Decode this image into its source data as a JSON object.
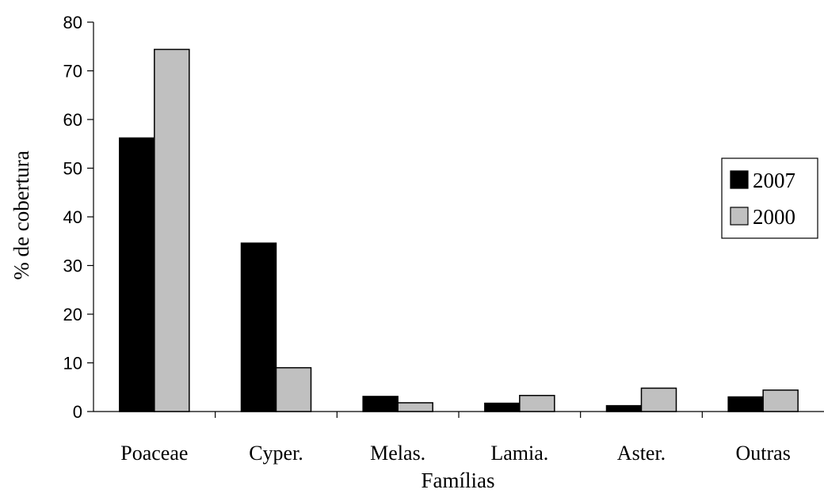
{
  "chart_data": {
    "type": "bar",
    "categories": [
      "Poaceae",
      "Cyper.",
      "Melas.",
      "Lamia.",
      "Aster.",
      "Outras"
    ],
    "series": [
      {
        "name": "2007",
        "values": [
          56.2,
          34.6,
          3.1,
          1.7,
          1.2,
          3.0
        ],
        "color": "#000000"
      },
      {
        "name": "2000",
        "values": [
          74.4,
          9.0,
          1.8,
          3.3,
          4.8,
          4.4
        ],
        "color": "#c0c0c0"
      }
    ],
    "title": "",
    "xlabel": "Famílias",
    "ylabel": "% de cobertura",
    "ylim": [
      0,
      80
    ],
    "yticks": [
      "0",
      "10",
      "20",
      "30",
      "40",
      "50",
      "60",
      "70",
      "80"
    ],
    "grid": false,
    "legend_position": "right"
  }
}
